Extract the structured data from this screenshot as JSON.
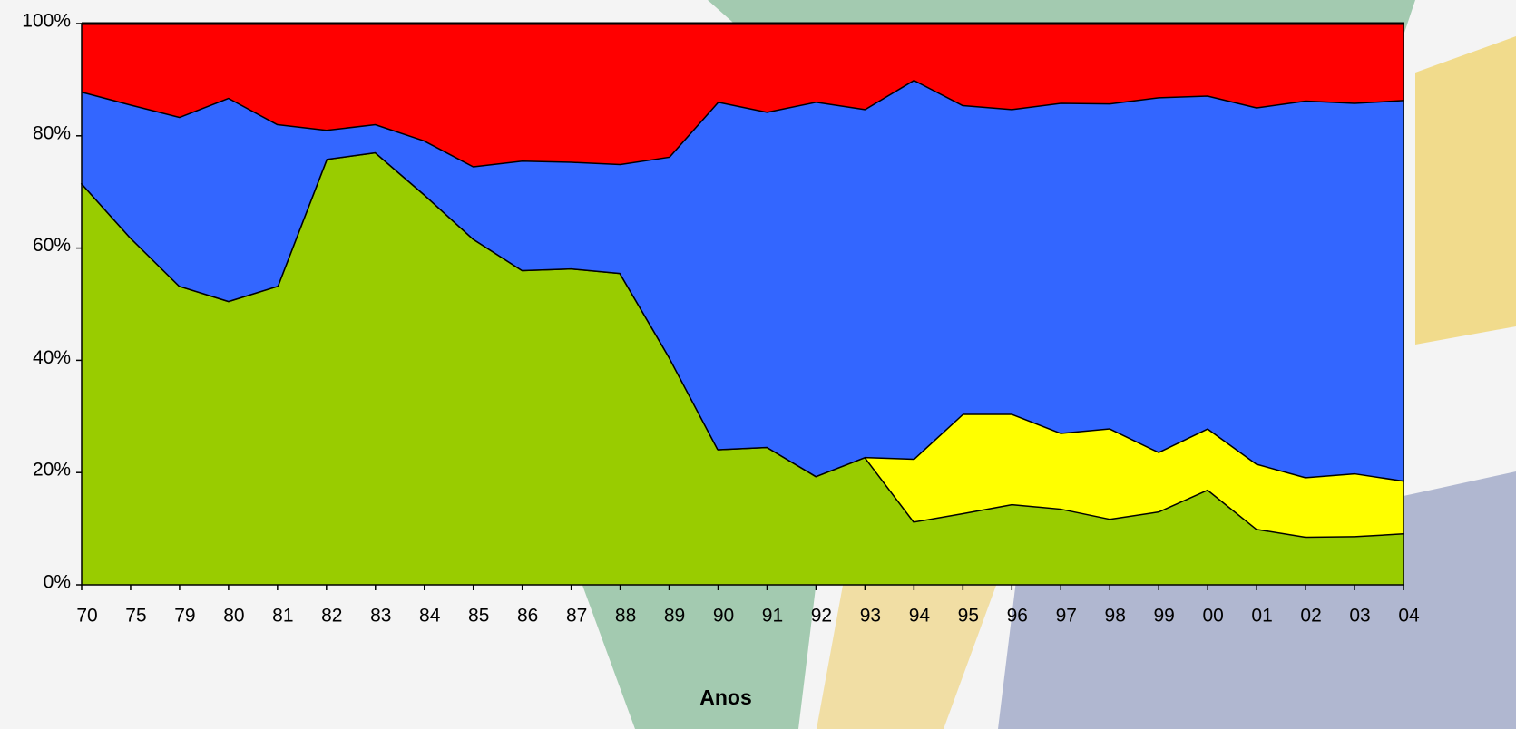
{
  "chart_data": {
    "type": "stacked_area",
    "x_label": "Anos",
    "categories": [
      "70",
      "75",
      "79",
      "80",
      "81",
      "82",
      "83",
      "84",
      "85",
      "86",
      "87",
      "88",
      "89",
      "90",
      "91",
      "92",
      "93",
      "94",
      "95",
      "96",
      "97",
      "98",
      "99",
      "00",
      "01",
      "02",
      "03",
      "04"
    ],
    "series": [
      {
        "color": "#99cc00",
        "values": [
          71.6,
          61.9,
          53.3,
          50.6,
          53.3,
          75.9,
          77.1,
          69.6,
          61.7,
          56.1,
          56.4,
          55.6,
          40.7,
          24.2,
          24.6,
          19.4,
          22.8,
          11.3,
          12.8,
          14.4,
          13.6,
          11.8,
          13.1,
          17.0,
          10.0,
          8.6,
          8.7,
          9.2
        ]
      },
      {
        "color": "#ffff00",
        "values": [
          0,
          0,
          0,
          0,
          0,
          0,
          0,
          0,
          0,
          0,
          0,
          0,
          0,
          0,
          0,
          0,
          0,
          11.2,
          17.7,
          16.1,
          13.5,
          16.1,
          10.6,
          10.9,
          11.6,
          10.6,
          11.2,
          9.4
        ]
      },
      {
        "color": "#3366ff",
        "values": [
          16.3,
          23.7,
          30.1,
          36.2,
          28.8,
          5.2,
          5.0,
          9.6,
          12.9,
          19.5,
          19.0,
          19.4,
          35.6,
          61.9,
          59.7,
          66.7,
          62.0,
          67.5,
          55.0,
          54.3,
          58.8,
          57.9,
          63.2,
          59.3,
          63.5,
          67.1,
          66.0,
          67.8
        ]
      },
      {
        "color": "#ff0000",
        "values": [
          12.1,
          14.4,
          16.6,
          13.2,
          17.9,
          18.9,
          17.9,
          20.8,
          25.4,
          24.4,
          24.6,
          25.0,
          23.7,
          13.9,
          15.7,
          13.9,
          15.2,
          10.0,
          14.5,
          15.2,
          14.1,
          14.2,
          13.1,
          12.8,
          14.9,
          13.7,
          14.1,
          13.6
        ]
      }
    ],
    "ylim": [
      0,
      100
    ],
    "yticks": [
      {
        "value": 0,
        "label": "0%"
      },
      {
        "value": 20,
        "label": "20%"
      },
      {
        "value": 40,
        "label": "40%"
      },
      {
        "value": 60,
        "label": "60%"
      },
      {
        "value": 80,
        "label": "80%"
      },
      {
        "value": 100,
        "label": "100%"
      }
    ]
  }
}
